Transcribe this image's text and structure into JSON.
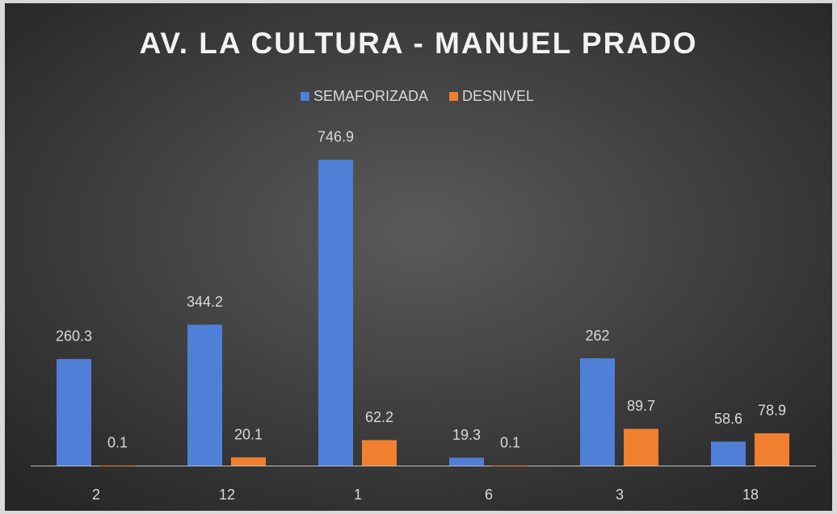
{
  "chart_data": {
    "type": "bar",
    "title": "AV. LA CULTURA - MANUEL PRADO",
    "categories": [
      "2",
      "12",
      "1",
      "6",
      "3",
      "18"
    ],
    "series": [
      {
        "name": "SEMAFORIZADA",
        "color": "#4f7fd6",
        "values": [
          260.3,
          344.2,
          746.9,
          19.3,
          262,
          58.6
        ]
      },
      {
        "name": "DESNIVEL",
        "color": "#f0802f",
        "values": [
          0.1,
          20.1,
          62.2,
          0.1,
          89.7,
          78.9
        ]
      }
    ],
    "ylim": [
      0,
      800
    ],
    "legend": "top",
    "grid": false
  }
}
